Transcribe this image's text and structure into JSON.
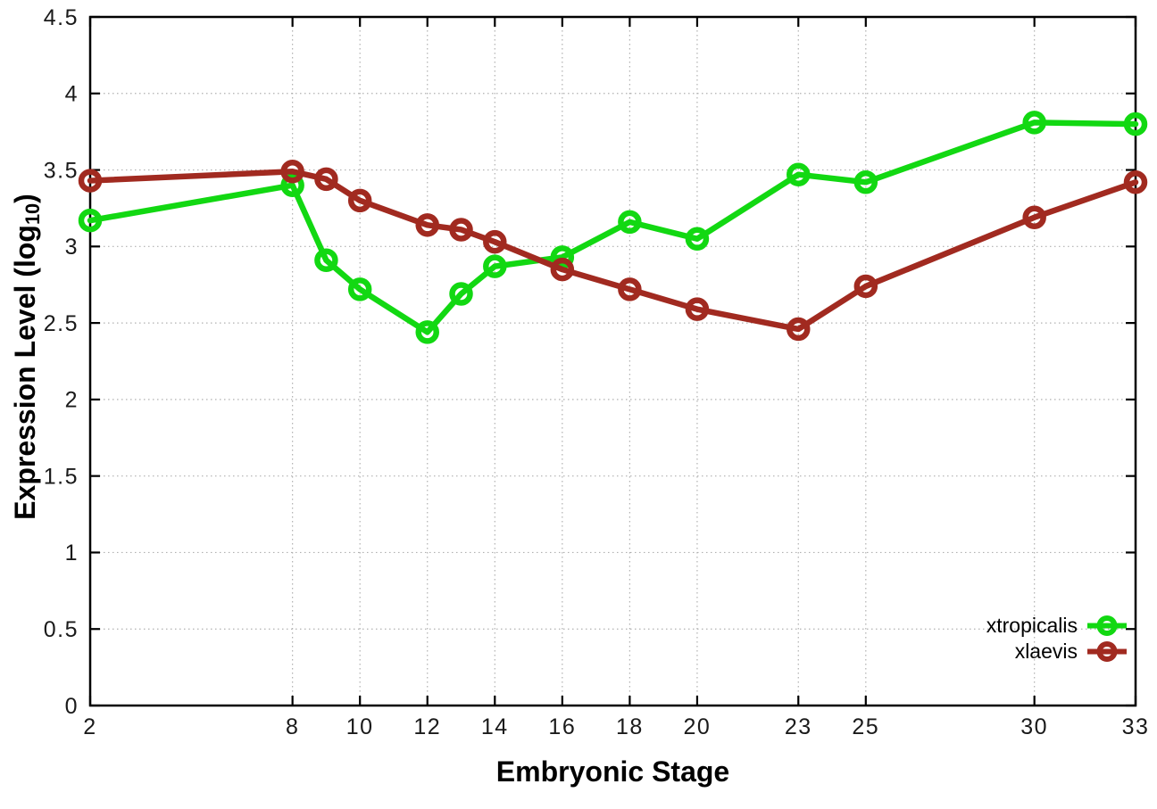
{
  "chart_data": {
    "type": "line",
    "title": "",
    "xlabel": "Embryonic Stage",
    "ylabel": "Expression Level (log10)",
    "ylabel_parts": {
      "prefix": "Expression Level (log",
      "sub": "10",
      "suffix": ")"
    },
    "x": [
      2,
      8,
      9,
      10,
      12,
      13,
      14,
      16,
      18,
      20,
      23,
      25,
      30,
      33
    ],
    "series": [
      {
        "name": "xtropicalis",
        "color": "#12d812",
        "values": [
          3.17,
          3.4,
          2.91,
          2.72,
          2.44,
          2.69,
          2.87,
          2.93,
          3.16,
          3.05,
          3.47,
          3.42,
          3.81,
          3.8
        ]
      },
      {
        "name": "xlaevis",
        "color": "#a12a20",
        "values": [
          3.43,
          3.49,
          3.44,
          3.3,
          3.14,
          3.11,
          3.03,
          2.85,
          2.72,
          2.59,
          2.46,
          2.74,
          3.19,
          3.42
        ]
      }
    ],
    "xlim": [
      2,
      33
    ],
    "ylim": [
      0,
      4.5
    ],
    "x_ticks": [
      2,
      8,
      10,
      12,
      14,
      16,
      18,
      20,
      23,
      25,
      30,
      33
    ],
    "x_tick_labels": [
      "2",
      "8",
      "10",
      "12",
      "14",
      "16",
      "18",
      "20",
      "23",
      "25",
      "30",
      "33"
    ],
    "y_ticks": [
      0,
      0.5,
      1,
      1.5,
      2,
      2.5,
      3,
      3.5,
      4,
      4.5
    ],
    "y_tick_labels": [
      "0",
      "0.5",
      "1",
      "1.5",
      "2",
      "2.5",
      "3",
      "3.5",
      "4",
      "4.5"
    ],
    "grid": true,
    "grid_style": "dotted",
    "grid_color": "#b0b0b0",
    "border_color": "#000000",
    "background_color": "#ffffff",
    "marker": "open-circle",
    "legend_position": "inside-bottom-right",
    "legend_entries": [
      "xtropicalis",
      "xlaevis"
    ]
  }
}
